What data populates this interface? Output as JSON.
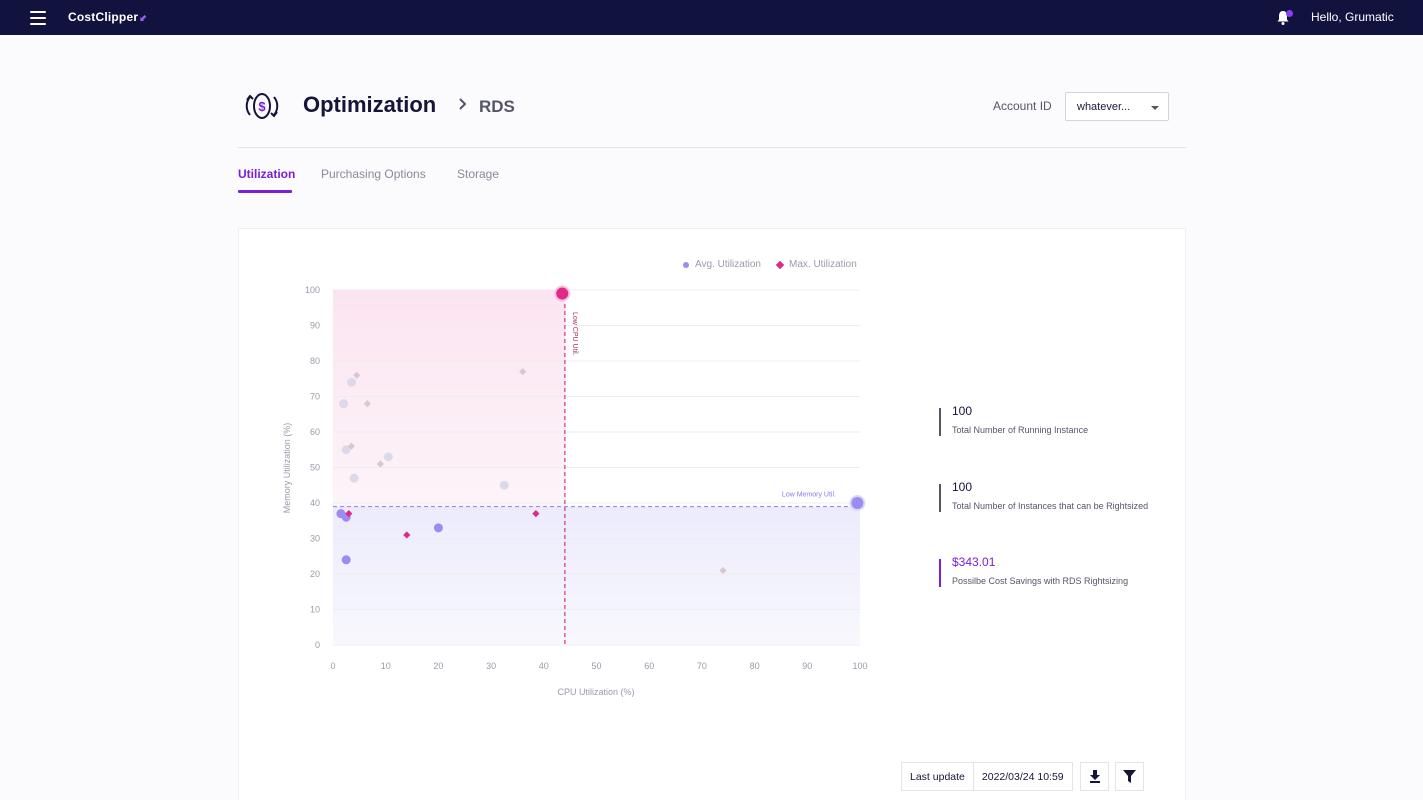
{
  "topbar": {
    "brand": "CostClipper",
    "greeting": "Hello, Grumatic"
  },
  "header": {
    "title": "Optimization",
    "breadcrumb": "RDS",
    "account_label": "Account ID",
    "account_value": "whatever..."
  },
  "tabs": [
    "Utilization",
    "Purchasing Options",
    "Storage"
  ],
  "stats": [
    {
      "value": "100",
      "label": "Total Number of Running Instance"
    },
    {
      "value": "100",
      "label": "Total Number of Instances that can be Rightsized"
    },
    {
      "value": "$343.01",
      "label": "Possilbe Cost Savings with RDS Rightsizing"
    }
  ],
  "footer": {
    "last_update_label": "Last update",
    "last_update_value": "2022/03/24  10:59"
  },
  "colors": {
    "accent": "#7a1fd6",
    "avg": "#9b8cf0",
    "max": "#e02a8a"
  },
  "chart_data": {
    "type": "scatter",
    "xlabel": "CPU Utilization (%)",
    "ylabel": "Memory Utilization (%)",
    "xlim": [
      0,
      100
    ],
    "ylim": [
      0,
      100
    ],
    "xticks": [
      0,
      10,
      20,
      30,
      40,
      50,
      60,
      70,
      80,
      90,
      100
    ],
    "yticks": [
      0,
      10,
      20,
      30,
      40,
      50,
      60,
      70,
      80,
      90,
      100
    ],
    "legend": [
      "Avg. Utilization",
      "Max. Utilization"
    ],
    "thresholds": {
      "cpu": {
        "value": 44,
        "label": "Low CPU Util."
      },
      "memory": {
        "value": 39,
        "label": "Low Memory Util."
      }
    },
    "series": [
      {
        "name": "Avg. Utilization",
        "marker": "circle",
        "points": [
          {
            "x": 2,
            "y": 68,
            "faded": true
          },
          {
            "x": 3.5,
            "y": 74,
            "faded": true
          },
          {
            "x": 2.5,
            "y": 55,
            "faded": true
          },
          {
            "x": 4,
            "y": 47,
            "faded": true
          },
          {
            "x": 10.5,
            "y": 53,
            "faded": true
          },
          {
            "x": 32.5,
            "y": 45,
            "faded": true
          },
          {
            "x": 1.5,
            "y": 37
          },
          {
            "x": 2.5,
            "y": 36
          },
          {
            "x": 20,
            "y": 33
          },
          {
            "x": 2.5,
            "y": 24
          },
          {
            "x": 99.5,
            "y": 40,
            "big": true
          },
          {
            "x": 43.5,
            "y": 99,
            "big": true,
            "highlight": true
          }
        ]
      },
      {
        "name": "Max. Utilization",
        "marker": "diamond",
        "points": [
          {
            "x": 4.5,
            "y": 76,
            "faded": true
          },
          {
            "x": 6.5,
            "y": 68,
            "faded": true
          },
          {
            "x": 3.5,
            "y": 56,
            "faded": true
          },
          {
            "x": 9,
            "y": 51,
            "faded": true
          },
          {
            "x": 36,
            "y": 77,
            "faded": true
          },
          {
            "x": 74,
            "y": 21,
            "faded": true
          },
          {
            "x": 3,
            "y": 37
          },
          {
            "x": 14,
            "y": 31
          },
          {
            "x": 38.5,
            "y": 37
          }
        ]
      }
    ]
  }
}
